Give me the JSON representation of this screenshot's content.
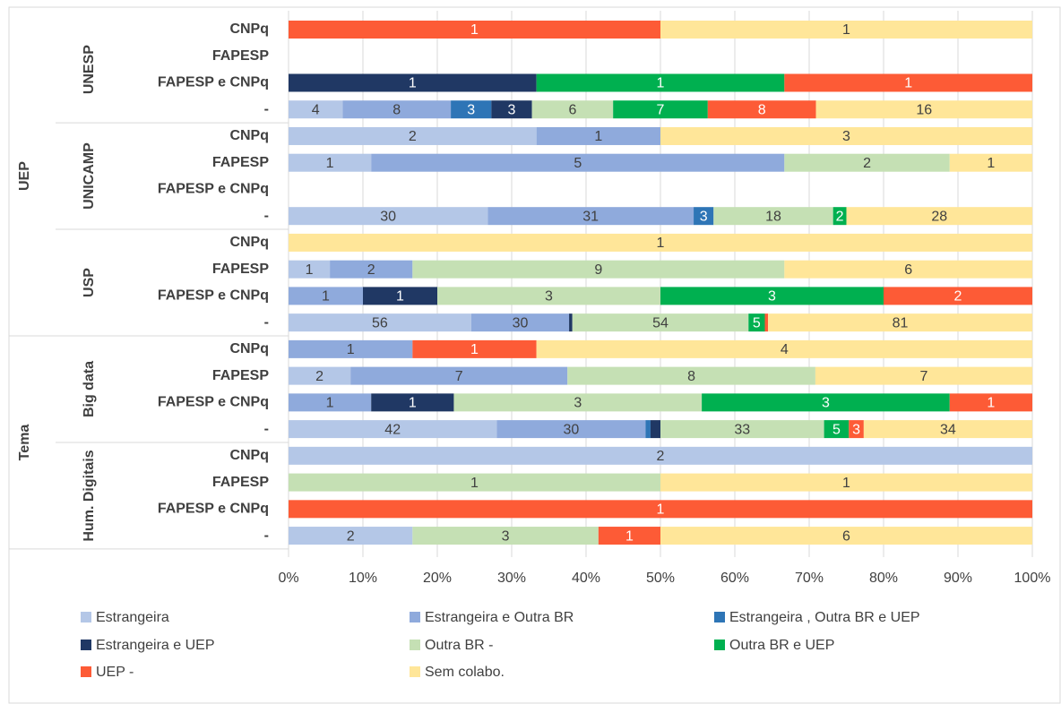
{
  "chart_data": {
    "type": "stacked_bar_100",
    "groups": [
      {
        "name": "UEP",
        "subgroups": [
          {
            "name": "UNESP",
            "categories": [
              "CNPq",
              "FAPESP",
              "FAPESP e CNPq",
              "-"
            ]
          },
          {
            "name": "UNICAMP",
            "categories": [
              "CNPq",
              "FAPESP",
              "FAPESP e CNPq",
              "-"
            ]
          },
          {
            "name": "USP",
            "categories": [
              "CNPq",
              "FAPESP",
              "FAPESP e CNPq",
              "-"
            ]
          }
        ]
      },
      {
        "name": "Tema",
        "subgroups": [
          {
            "name": "Big data",
            "categories": [
              "CNPq",
              "FAPESP",
              "FAPESP e CNPq",
              "-"
            ]
          },
          {
            "name": "Hum. Digitais",
            "categories": [
              "CNPq",
              "FAPESP",
              "FAPESP e CNPq",
              "-"
            ]
          }
        ]
      }
    ],
    "series": [
      {
        "name": "Estrangeira",
        "color": "#b4c7e7",
        "label_color": "#404040",
        "values": [
          null,
          null,
          null,
          4,
          2,
          1,
          null,
          30,
          null,
          1,
          null,
          56,
          null,
          2,
          null,
          42,
          2,
          null,
          null,
          2
        ]
      },
      {
        "name": "Estrangeira e Outra BR",
        "color": "#8faadc",
        "label_color": "#404040",
        "values": [
          null,
          null,
          null,
          8,
          1,
          5,
          null,
          31,
          null,
          2,
          1,
          30,
          1,
          7,
          1,
          30,
          null,
          null,
          null,
          null
        ]
      },
      {
        "name": "Estrangeira , Outra BR e UEP",
        "color": "#2e75b6",
        "label_color": "#ffffff",
        "values": [
          null,
          null,
          null,
          3,
          null,
          null,
          null,
          3,
          null,
          null,
          null,
          null,
          null,
          null,
          null,
          1,
          null,
          null,
          null,
          null
        ]
      },
      {
        "name": "Estrangeira e UEP",
        "color": "#203864",
        "label_color": "#ffffff",
        "values": [
          null,
          null,
          1,
          3,
          null,
          null,
          null,
          null,
          null,
          null,
          1,
          1,
          null,
          null,
          1,
          2,
          null,
          null,
          null,
          null
        ]
      },
      {
        "name": "Outra BR -",
        "color": "#c5e0b4",
        "label_color": "#404040",
        "values": [
          null,
          null,
          null,
          6,
          null,
          2,
          null,
          18,
          null,
          9,
          3,
          54,
          null,
          8,
          3,
          33,
          null,
          1,
          null,
          3
        ]
      },
      {
        "name": "Outra BR e UEP",
        "color": "#00b050",
        "label_color": "#ffffff",
        "values": [
          null,
          null,
          1,
          7,
          null,
          null,
          null,
          2,
          null,
          null,
          3,
          5,
          null,
          null,
          3,
          5,
          null,
          null,
          null,
          null
        ]
      },
      {
        "name": "UEP -",
        "color": "#fd5b36",
        "label_color": "#ffffff",
        "values": [
          1,
          null,
          1,
          8,
          null,
          null,
          null,
          null,
          null,
          null,
          2,
          1,
          1,
          null,
          1,
          3,
          null,
          null,
          1,
          1
        ]
      },
      {
        "name": "Sem colabo.",
        "color": "#ffe699",
        "label_color": "#404040",
        "values": [
          1,
          null,
          null,
          16,
          3,
          1,
          null,
          28,
          1,
          6,
          null,
          81,
          4,
          7,
          null,
          34,
          null,
          1,
          null,
          6
        ]
      }
    ],
    "xlim": [
      0,
      100
    ],
    "xticks": [
      {
        "value": 0,
        "label": "0%"
      },
      {
        "value": 10,
        "label": "10%"
      },
      {
        "value": 20,
        "label": "20%"
      },
      {
        "value": 30,
        "label": "30%"
      },
      {
        "value": 40,
        "label": "40%"
      },
      {
        "value": 50,
        "label": "50%"
      },
      {
        "value": 60,
        "label": "60%"
      },
      {
        "value": 70,
        "label": "70%"
      },
      {
        "value": 80,
        "label": "80%"
      },
      {
        "value": 90,
        "label": "90%"
      },
      {
        "value": 100,
        "label": "100%"
      }
    ],
    "grid": true,
    "legend": "bottom"
  }
}
